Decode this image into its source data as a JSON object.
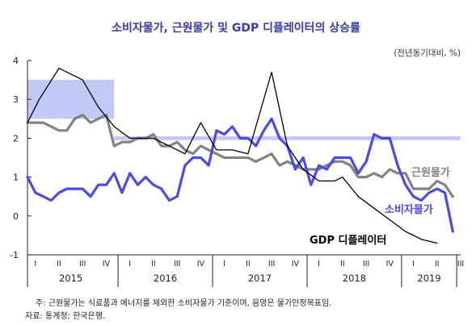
{
  "chart_data": {
    "type": "line",
    "title": "소비자물가, 근원물가 및 GDP 디플레이터의 상승률",
    "unit": "(전년동기대비, %)",
    "ylim": [
      -1,
      4
    ],
    "yticks": [
      "4",
      "3",
      "2",
      "1",
      "0",
      "-1"
    ],
    "xlim": [
      0,
      55
    ],
    "quarter_labels": [
      "I",
      "II",
      "III",
      "IV",
      "I",
      "II",
      "III",
      "IV",
      "I",
      "II",
      "III",
      "IV",
      "I",
      "II",
      "III",
      "IV",
      "I",
      "II",
      "III"
    ],
    "years": [
      "2015",
      "2016",
      "2017",
      "2018",
      "2019"
    ],
    "target_bands": [
      {
        "x": [
          0,
          11
        ],
        "y": [
          2.5,
          3.5
        ]
      },
      {
        "x": [
          11,
          55
        ],
        "y": [
          1.95,
          2.05
        ]
      }
    ],
    "series": [
      {
        "name": "소비자물가",
        "color": "#4b4be6",
        "x": [
          0,
          1,
          2,
          3,
          4,
          5,
          6,
          7,
          8,
          9,
          10,
          11,
          12,
          13,
          14,
          15,
          16,
          17,
          18,
          19,
          20,
          21,
          22,
          23,
          24,
          25,
          26,
          27,
          28,
          29,
          30,
          31,
          32,
          33,
          34,
          35,
          36,
          37,
          38,
          39,
          40,
          41,
          42,
          43,
          44,
          45,
          46,
          47,
          48,
          49,
          50,
          51,
          52,
          53,
          54
        ],
        "values": [
          1.0,
          0.6,
          0.5,
          0.4,
          0.6,
          0.7,
          0.7,
          0.7,
          0.5,
          0.8,
          0.8,
          1.1,
          0.6,
          1.1,
          0.8,
          1.0,
          0.8,
          0.7,
          0.4,
          0.5,
          1.3,
          1.5,
          1.5,
          1.3,
          2.2,
          2.1,
          2.3,
          2.0,
          2.0,
          1.8,
          2.2,
          2.5,
          2.0,
          1.8,
          1.2,
          1.5,
          0.8,
          1.3,
          1.2,
          1.5,
          1.5,
          1.5,
          1.1,
          1.4,
          2.1,
          2.0,
          2.0,
          1.3,
          0.8,
          0.5,
          0.4,
          0.6,
          0.7,
          0.6,
          -0.4
        ]
      },
      {
        "name": "근원물가",
        "color": "#828282",
        "x": [
          0,
          1,
          2,
          3,
          4,
          5,
          6,
          7,
          8,
          9,
          10,
          11,
          12,
          13,
          14,
          15,
          16,
          17,
          18,
          19,
          20,
          21,
          22,
          23,
          24,
          25,
          26,
          27,
          28,
          29,
          30,
          31,
          32,
          33,
          34,
          35,
          36,
          37,
          38,
          39,
          40,
          41,
          42,
          43,
          44,
          45,
          46,
          47,
          48,
          49,
          50,
          51,
          52,
          53,
          54
        ],
        "values": [
          2.4,
          2.4,
          2.4,
          2.3,
          2.2,
          2.2,
          2.5,
          2.6,
          2.4,
          2.5,
          2.6,
          1.8,
          1.9,
          1.9,
          2.0,
          2.0,
          2.1,
          1.8,
          1.8,
          1.9,
          1.7,
          1.6,
          1.8,
          1.7,
          1.6,
          1.5,
          1.5,
          1.5,
          1.5,
          1.4,
          1.5,
          1.6,
          1.3,
          1.4,
          1.3,
          1.2,
          1.2,
          1.2,
          1.3,
          1.4,
          1.4,
          1.3,
          1.0,
          1.0,
          1.1,
          1.0,
          1.2,
          1.1,
          1.1,
          0.7,
          0.7,
          0.7,
          0.9,
          0.8,
          0.5
        ]
      },
      {
        "name": "GDP 디플레이터",
        "color": "#000000",
        "x": [
          0,
          1.5,
          4,
          7,
          9,
          11,
          13,
          16,
          18,
          20,
          22,
          24,
          26,
          28,
          29,
          31,
          33,
          35,
          37,
          39,
          40,
          42,
          44,
          46,
          48,
          50,
          52
        ],
        "values": [
          2.4,
          3.0,
          3.8,
          3.5,
          2.8,
          2.3,
          2.0,
          2.0,
          1.8,
          1.6,
          2.4,
          1.7,
          1.7,
          1.6,
          2.3,
          3.7,
          1.8,
          1.2,
          0.9,
          0.9,
          1.0,
          0.5,
          0.2,
          -0.1,
          -0.4,
          -0.6,
          -0.7
        ]
      }
    ]
  },
  "labels": {
    "cpi": "소비자물가",
    "core": "근원물가",
    "gdp": "GDP 디플레이터"
  },
  "notes": {
    "note": "주: 근원물가는 식료품과 에너지를 제외한 소비자물가 기준이며, 음영은 물가안정목표임.",
    "source": "자료: 통계청; 한국은행."
  }
}
